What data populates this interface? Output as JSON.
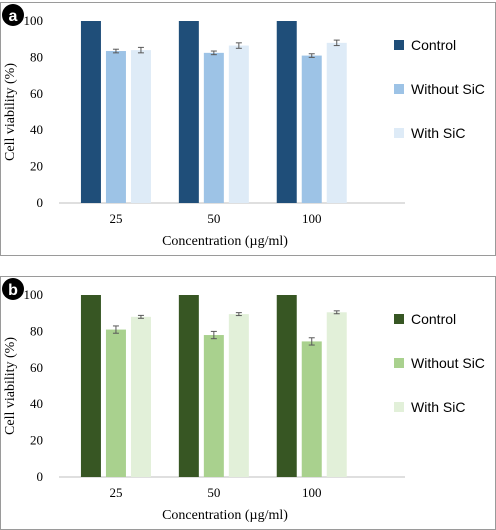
{
  "chart_data": [
    {
      "type": "bar",
      "panel_label": "a",
      "categories": [
        "25",
        "50",
        "100"
      ],
      "series": [
        {
          "name": "Control",
          "color": "#1f4e79",
          "values": [
            100,
            100,
            100
          ],
          "errors": [
            0,
            0,
            0
          ]
        },
        {
          "name": "Without SiC",
          "color": "#9dc3e6",
          "values": [
            83.5,
            82.5,
            81
          ],
          "errors": [
            1.0,
            1.0,
            1.0
          ]
        },
        {
          "name": "With SiC",
          "color": "#deebf7",
          "values": [
            84,
            86.5,
            88
          ],
          "errors": [
            1.5,
            1.5,
            1.5
          ]
        }
      ],
      "title": "",
      "xlabel": "Concentration (µg/ml)",
      "ylabel": "Cell viability (%)",
      "ylim": [
        0,
        100
      ],
      "yticks": [
        "0",
        "20",
        "40",
        "60",
        "80",
        "100"
      ],
      "grid": false,
      "legend": "right"
    },
    {
      "type": "bar",
      "panel_label": "b",
      "categories": [
        "25",
        "50",
        "100"
      ],
      "series": [
        {
          "name": "Control",
          "color": "#375623",
          "values": [
            100,
            100,
            100
          ],
          "errors": [
            0,
            0,
            0
          ]
        },
        {
          "name": "Without SiC",
          "color": "#a9d18e",
          "values": [
            81,
            78,
            74.5
          ],
          "errors": [
            2.0,
            2.0,
            2.0
          ]
        },
        {
          "name": "With SiC",
          "color": "#e2f0d9",
          "values": [
            88,
            89.5,
            90.5
          ],
          "errors": [
            0.8,
            0.8,
            0.8
          ]
        }
      ],
      "title": "",
      "xlabel": "Concentration (µg/ml)",
      "ylabel": "Cell viability (%)",
      "ylim": [
        0,
        100
      ],
      "yticks": [
        "0",
        "20",
        "40",
        "60",
        "80",
        "100"
      ],
      "grid": false,
      "legend": "right"
    }
  ]
}
